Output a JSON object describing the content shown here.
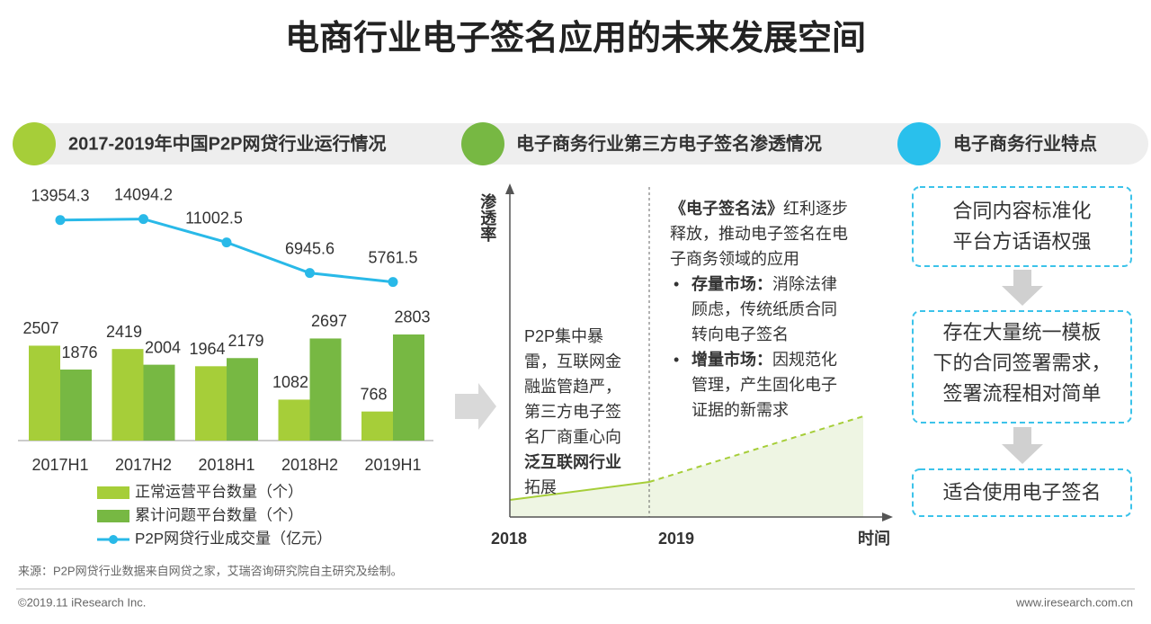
{
  "title": "电商行业电子签名应用的未来发展空间",
  "sections": [
    "2017-2019年中国P2P网贷行业运行情况",
    "电子商务行业第三方电子签名渗透情况",
    "电子商务行业特点"
  ],
  "chart_data": {
    "type": "bar",
    "categories": [
      "2017H1",
      "2017H2",
      "2018H1",
      "2018H2",
      "2019H1"
    ],
    "series": [
      {
        "name": "正常运营平台数量（个）",
        "color": "#a6ce39",
        "type": "bar",
        "values": [
          2507,
          2419,
          1964,
          1082,
          768
        ]
      },
      {
        "name": "累计问题平台数量（个）",
        "color": "#77b843",
        "type": "bar",
        "values": [
          1876,
          2004,
          2179,
          2697,
          2803
        ]
      },
      {
        "name": "P2P网贷行业成交量（亿元）",
        "color": "#29b9e8",
        "type": "line",
        "axis": "y2",
        "values": [
          13954.3,
          14094.2,
          11002.5,
          6945.6,
          5761.5
        ]
      }
    ]
  },
  "penetration": {
    "y_label": "渗透率",
    "x_label": "时间",
    "x_ticks": [
      "2018",
      "2019"
    ],
    "left_text": [
      "P2P集中暴雷，互联网金融监管趋严，第三方电子签名厂商重心向",
      "泛互联网行业",
      "拓展"
    ],
    "right_intro": [
      "《电子签名法》",
      "红利逐步释放，推动电子签名在电子商务领域的应用"
    ],
    "bullets": [
      {
        "label": "存量市场：",
        "text": "消除法律顾虑，传统纸质合同转向电子签名"
      },
      {
        "label": "增量市场：",
        "text": "因规范化管理，产生固化电子证据的新需求"
      }
    ]
  },
  "features": [
    [
      "合同内容标准化",
      "平台方话语权强"
    ],
    [
      "存在大量统一模板",
      "下的合同签署需求，",
      "签署流程相对简单"
    ],
    [
      "适合使用电子签名"
    ]
  ],
  "source": "来源：P2P网贷行业数据来自网贷之家，艾瑞咨询研究院自主研究及绘制。",
  "footer": {
    "copyright": "©2019.11 iResearch Inc.",
    "website": "www.iresearch.com.cn"
  }
}
